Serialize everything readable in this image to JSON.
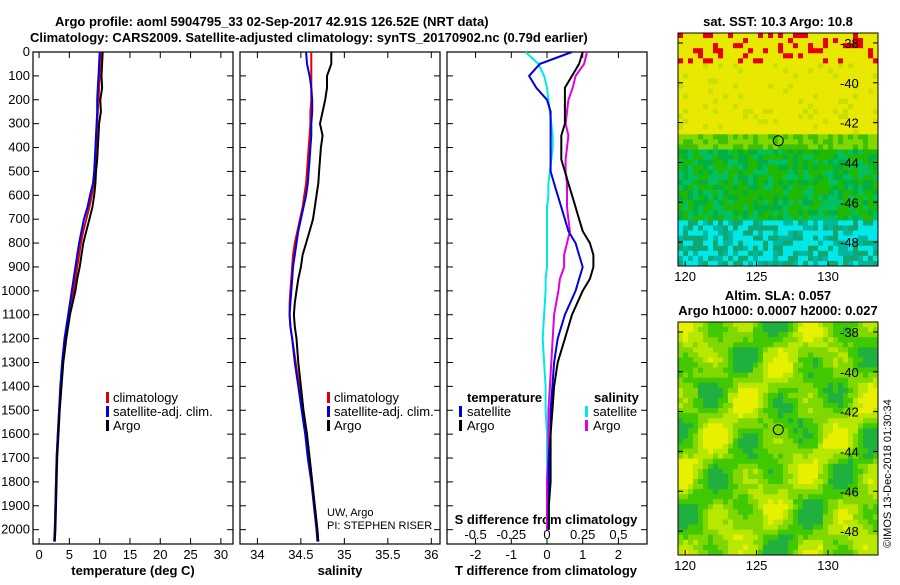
{
  "header": {
    "title1": "Argo profile: aoml 5904795_33 02-Sep-2017 42.91S 126.52E (NRT data)",
    "title2": "Climatology: CARS2009. Satellite-adjusted climatology: synTS_20170902.nc (0.79d earlier)"
  },
  "colors": {
    "climatology": "#e00000",
    "satellite": "#0000e0",
    "argo": "#000000",
    "s_sat": "#00e8e8",
    "s_argo": "#e000e0"
  },
  "chart_data": [
    {
      "type": "line",
      "xlabel": "temperature (deg C)",
      "xlim": [
        -1,
        32
      ],
      "ylim": [
        2060,
        0
      ],
      "xticks": [
        "0",
        "5",
        "10",
        "15",
        "20",
        "25",
        "30"
      ],
      "yticks": [
        "0",
        "100",
        "200",
        "300",
        "400",
        "500",
        "600",
        "700",
        "800",
        "900",
        "1000",
        "1100",
        "1200",
        "1300",
        "1400",
        "1500",
        "1600",
        "1700",
        "1800",
        "1900",
        "2000"
      ],
      "legend": [
        "climatology",
        "satellite-adj. clim.",
        "Argo"
      ],
      "depth": [
        0,
        50,
        100,
        150,
        200,
        250,
        300,
        350,
        400,
        450,
        500,
        550,
        600,
        650,
        700,
        750,
        800,
        850,
        900,
        950,
        1000,
        1100,
        1200,
        1300,
        1400,
        1500,
        1600,
        1700,
        1800,
        1900,
        2000,
        2050
      ],
      "series": [
        {
          "name": "climatology",
          "values": [
            10.2,
            10.1,
            10.0,
            9.9,
            9.8,
            9.7,
            9.6,
            9.5,
            9.4,
            9.3,
            9.2,
            9.0,
            8.7,
            8.3,
            7.8,
            7.3,
            6.9,
            6.6,
            6.3,
            6.0,
            5.7,
            5.0,
            4.3,
            3.9,
            3.6,
            3.3,
            3.1,
            2.9,
            2.8,
            2.7,
            2.6,
            2.5
          ]
        },
        {
          "name": "satellite-adj. clim.",
          "values": [
            10.0,
            9.9,
            9.8,
            9.7,
            9.6,
            9.6,
            9.5,
            9.4,
            9.3,
            9.2,
            9.1,
            8.9,
            8.4,
            8.0,
            7.4,
            7.0,
            6.6,
            6.3,
            6.0,
            5.7,
            5.4,
            4.8,
            4.2,
            3.8,
            3.5,
            3.3,
            3.1,
            2.9,
            2.8,
            2.7,
            2.6,
            2.5
          ]
        },
        {
          "name": "Argo",
          "values": [
            10.5,
            10.4,
            10.3,
            10.4,
            10.1,
            10.2,
            9.9,
            9.8,
            9.7,
            9.6,
            9.4,
            9.3,
            9.1,
            8.8,
            8.3,
            7.8,
            7.3,
            7.0,
            6.7,
            6.3,
            6.0,
            5.1,
            4.5,
            4.0,
            3.7,
            3.4,
            3.2,
            3.0,
            2.9,
            2.8,
            2.7,
            2.6
          ]
        }
      ]
    },
    {
      "type": "line",
      "xlabel": "salinity",
      "xlim": [
        33.8,
        36.1
      ],
      "ylim": [
        2060,
        0
      ],
      "xticks": [
        "34",
        "34.5",
        "35",
        "35.5",
        "36"
      ],
      "legend": [
        "climatology",
        "satellite-adj. clim.",
        "Argo"
      ],
      "annotation": [
        "UW, Argo",
        "PI: STEPHEN RISER"
      ],
      "depth": [
        0,
        50,
        100,
        150,
        200,
        250,
        300,
        350,
        400,
        450,
        500,
        550,
        600,
        650,
        700,
        750,
        800,
        850,
        900,
        950,
        1000,
        1050,
        1100,
        1150,
        1200,
        1300,
        1400,
        1500,
        1600,
        1700,
        1800,
        1900,
        2000,
        2050
      ],
      "series": [
        {
          "name": "climatology",
          "values": [
            34.62,
            34.62,
            34.62,
            34.62,
            34.62,
            34.61,
            34.61,
            34.6,
            34.59,
            34.58,
            34.57,
            34.56,
            34.54,
            34.52,
            34.49,
            34.46,
            34.43,
            34.41,
            34.4,
            34.39,
            34.38,
            34.37,
            34.37,
            34.38,
            34.4,
            34.44,
            34.48,
            34.52,
            34.56,
            34.6,
            34.63,
            34.66,
            34.69,
            34.7
          ]
        },
        {
          "name": "satellite-adj. clim.",
          "values": [
            34.56,
            34.57,
            34.6,
            34.62,
            34.63,
            34.63,
            34.62,
            34.62,
            34.61,
            34.6,
            34.59,
            34.58,
            34.56,
            34.53,
            34.5,
            34.47,
            34.45,
            34.43,
            34.41,
            34.4,
            34.39,
            34.38,
            34.37,
            34.38,
            34.4,
            34.43,
            34.47,
            34.51,
            34.55,
            34.58,
            34.62,
            34.65,
            34.68,
            34.69
          ]
        },
        {
          "name": "Argo",
          "values": [
            34.85,
            34.85,
            34.8,
            34.8,
            34.78,
            34.75,
            34.72,
            34.75,
            34.73,
            34.72,
            34.71,
            34.7,
            34.68,
            34.66,
            34.64,
            34.6,
            34.56,
            34.52,
            34.5,
            34.47,
            34.45,
            34.43,
            34.42,
            34.43,
            34.45,
            34.47,
            34.5,
            34.53,
            34.57,
            34.6,
            34.63,
            34.66,
            34.69,
            34.7
          ]
        }
      ]
    },
    {
      "type": "line",
      "xlabel": "T difference from climatology",
      "xlim": [
        -2.8,
        2.8
      ],
      "ylim": [
        2060,
        0
      ],
      "xticks": [
        "-2",
        "-1",
        "0",
        "1",
        "2"
      ],
      "top_axis_label": "S difference from climatology",
      "top_xticks": [
        "-0.5",
        "-0.25",
        "0",
        "0.25",
        "0.5"
      ],
      "legend_title_left": "temperature",
      "legend_title_right": "salinity",
      "legend_left": [
        "satellite",
        "Argo"
      ],
      "legend_right": [
        "satellite",
        "Argo"
      ],
      "depth": [
        0,
        50,
        100,
        150,
        200,
        250,
        300,
        350,
        400,
        450,
        500,
        550,
        600,
        650,
        700,
        750,
        800,
        850,
        900,
        950,
        1000,
        1100,
        1200,
        1300,
        1400,
        1500,
        1600,
        1700,
        1800,
        1900,
        2000
      ],
      "series": [
        {
          "name": "temperature satellite",
          "values": [
            0.7,
            -0.2,
            -0.5,
            -0.3,
            0.0,
            0.1,
            0.1,
            0.1,
            0.1,
            0.1,
            0.1,
            0.2,
            0.3,
            0.4,
            0.5,
            0.6,
            0.8,
            0.9,
            1.0,
            0.9,
            0.8,
            0.5,
            0.3,
            0.2,
            0.15,
            0.1,
            0.1,
            0.05,
            0.05,
            0.05,
            0.05
          ]
        },
        {
          "name": "temperature Argo",
          "values": [
            1.0,
            0.9,
            0.7,
            0.5,
            0.5,
            0.5,
            0.5,
            0.4,
            0.4,
            0.4,
            0.5,
            0.6,
            0.7,
            0.8,
            0.9,
            1.0,
            1.2,
            1.3,
            1.3,
            1.2,
            1.0,
            0.7,
            0.5,
            0.3,
            0.2,
            0.15,
            0.1,
            0.1,
            0.1,
            0.05,
            0.05
          ]
        },
        {
          "name": "salinity satellite",
          "values": [
            -0.15,
            -0.06,
            -0.02,
            0.0,
            0.01,
            0.02,
            0.03,
            0.04,
            0.04,
            0.03,
            0.02,
            0.01,
            0.01,
            0.0,
            0.0,
            0.0,
            0.0,
            0.0,
            0.0,
            -0.01,
            -0.01,
            -0.02,
            -0.03,
            -0.02,
            -0.01,
            -0.01,
            0.0,
            0.0,
            0.0,
            0.0,
            0.0
          ]
        },
        {
          "name": "salinity Argo",
          "values": [
            0.28,
            0.26,
            0.2,
            0.18,
            0.15,
            0.14,
            0.13,
            0.15,
            0.14,
            0.13,
            0.13,
            0.14,
            0.14,
            0.14,
            0.15,
            0.16,
            0.14,
            0.12,
            0.12,
            0.09,
            0.08,
            0.05,
            0.04,
            0.03,
            0.02,
            0.01,
            0.01,
            0.01,
            0.0,
            0.0,
            0.0
          ]
        }
      ]
    },
    {
      "type": "heatmap",
      "title": "sat. SST: 10.3 Argo: 10.8",
      "xlim": [
        119.5,
        133.5
      ],
      "ylim": [
        -49.2,
        -37.5
      ],
      "xticks": [
        "120",
        "125",
        "130"
      ],
      "yticks": [
        "-38",
        "-40",
        "-42",
        "-44",
        "-46",
        "-48"
      ],
      "marker": {
        "lon": 126.52,
        "lat": -42.91
      }
    },
    {
      "type": "heatmap",
      "title": "Altim. SLA: 0.057",
      "subtitle": "Argo h1000: 0.0007 h2000: 0.027",
      "xlim": [
        119.5,
        133.5
      ],
      "ylim": [
        -49.2,
        -37.5
      ],
      "xticks": [
        "120",
        "125",
        "130"
      ],
      "yticks": [
        "-38",
        "-40",
        "-42",
        "-44",
        "-46",
        "-48"
      ],
      "marker": {
        "lon": 126.52,
        "lat": -42.91
      }
    }
  ],
  "side_note": "©IMOS 13-Dec-2018 01:30:34"
}
